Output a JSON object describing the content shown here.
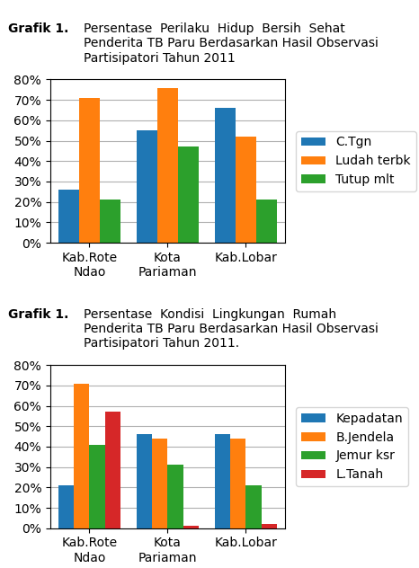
{
  "chart_data": [
    {
      "type": "bar",
      "title": "Grafik 1.",
      "subtitle": "Persentase  Perilaku  Hidup  Bersih  Sehat\nPenderita TB Paru Berdasarkan Hasil Observasi\nPartisipatori Tahun 2011",
      "categories": [
        "Kab.Rote\nNdao",
        "Kota\nPariaman",
        "Kab.Lobar"
      ],
      "series": [
        {
          "name": "C.Tgn",
          "values": [
            26,
            55,
            66
          ]
        },
        {
          "name": "Ludah terbk",
          "values": [
            71,
            76,
            52
          ]
        },
        {
          "name": "Tutup mlt",
          "values": [
            21,
            47,
            21
          ]
        }
      ],
      "ylim": [
        0,
        80
      ],
      "yticks": [
        {
          "value": 0,
          "label": "0%"
        },
        {
          "value": 10,
          "label": "10%"
        },
        {
          "value": 20,
          "label": "20%"
        },
        {
          "value": 30,
          "label": "30%"
        },
        {
          "value": 40,
          "label": "40%"
        },
        {
          "value": 50,
          "label": "50%"
        },
        {
          "value": 60,
          "label": "60%"
        },
        {
          "value": 70,
          "label": "70%"
        },
        {
          "value": 80,
          "label": "80%"
        }
      ],
      "grid": true,
      "legend": "right"
    },
    {
      "type": "bar",
      "title": "Grafik 1.",
      "subtitle": "Persentase  Kondisi  Lingkungan  Rumah\nPenderita TB Paru Berdasarkan Hasil Observasi\nPartisipatori Tahun 2011.",
      "categories": [
        "Kab.Rote\nNdao",
        "Kota\nPariaman",
        "Kab.Lobar"
      ],
      "series": [
        {
          "name": "Kepadatan",
          "values": [
            21,
            46,
            46
          ]
        },
        {
          "name": "B.Jendela",
          "values": [
            71,
            44,
            44
          ]
        },
        {
          "name": "Jemur ksr",
          "values": [
            41,
            31,
            21
          ]
        },
        {
          "name": "L.Tanah",
          "values": [
            57,
            1,
            2
          ]
        }
      ],
      "ylim": [
        0,
        80
      ],
      "yticks": [
        {
          "value": 0,
          "label": "0%"
        },
        {
          "value": 10,
          "label": "10%"
        },
        {
          "value": 20,
          "label": "20%"
        },
        {
          "value": 30,
          "label": "30%"
        },
        {
          "value": 40,
          "label": "40%"
        },
        {
          "value": 50,
          "label": "50%"
        },
        {
          "value": 60,
          "label": "60%"
        },
        {
          "value": 70,
          "label": "70%"
        },
        {
          "value": 80,
          "label": "80%"
        }
      ],
      "grid": true,
      "legend": "right"
    }
  ]
}
